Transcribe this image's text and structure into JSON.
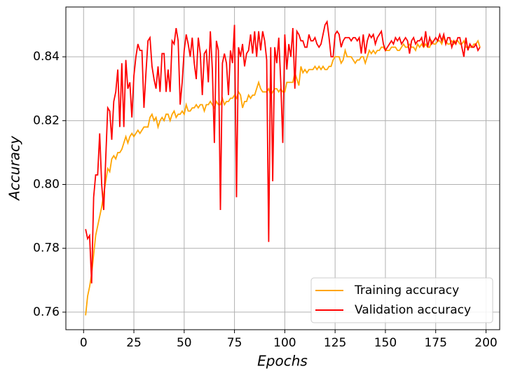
{
  "chart_data": {
    "type": "line",
    "xlabel": "Epochs",
    "ylabel": "Accuracy",
    "x": [
      1,
      2,
      3,
      4,
      5,
      6,
      7,
      8,
      9,
      10,
      11,
      12,
      13,
      14,
      15,
      16,
      17,
      18,
      19,
      20,
      21,
      22,
      23,
      24,
      25,
      26,
      27,
      28,
      29,
      30,
      31,
      32,
      33,
      34,
      35,
      36,
      37,
      38,
      39,
      40,
      41,
      42,
      43,
      44,
      45,
      46,
      47,
      48,
      49,
      50,
      51,
      52,
      53,
      54,
      55,
      56,
      57,
      58,
      59,
      60,
      61,
      62,
      63,
      64,
      65,
      66,
      67,
      68,
      69,
      70,
      71,
      72,
      73,
      74,
      75,
      76,
      77,
      78,
      79,
      80,
      81,
      82,
      83,
      84,
      85,
      86,
      87,
      88,
      89,
      90,
      91,
      92,
      93,
      94,
      95,
      96,
      97,
      98,
      99,
      100,
      101,
      102,
      103,
      104,
      105,
      106,
      107,
      108,
      109,
      110,
      111,
      112,
      113,
      114,
      115,
      116,
      117,
      118,
      119,
      120,
      121,
      122,
      123,
      124,
      125,
      126,
      127,
      128,
      129,
      130,
      131,
      132,
      133,
      134,
      135,
      136,
      137,
      138,
      139,
      140,
      141,
      142,
      143,
      144,
      145,
      146,
      147,
      148,
      149,
      150,
      151,
      152,
      153,
      154,
      155,
      156,
      157,
      158,
      159,
      160,
      161,
      162,
      163,
      164,
      165,
      166,
      167,
      168,
      169,
      170,
      171,
      172,
      173,
      174,
      175,
      176,
      177,
      178,
      179,
      180,
      181,
      182,
      183,
      184,
      185,
      186,
      187,
      188,
      189,
      190,
      191,
      192,
      193,
      194,
      195,
      196,
      197
    ],
    "series": [
      {
        "name": "Training accuracy",
        "color": "#ffa500",
        "values": [
          0.759,
          0.765,
          0.768,
          0.772,
          0.778,
          0.784,
          0.787,
          0.79,
          0.793,
          0.797,
          0.801,
          0.805,
          0.804,
          0.808,
          0.809,
          0.808,
          0.81,
          0.81,
          0.811,
          0.813,
          0.815,
          0.813,
          0.815,
          0.816,
          0.815,
          0.816,
          0.817,
          0.816,
          0.817,
          0.818,
          0.818,
          0.818,
          0.821,
          0.822,
          0.82,
          0.821,
          0.818,
          0.82,
          0.821,
          0.82,
          0.822,
          0.822,
          0.82,
          0.822,
          0.823,
          0.821,
          0.822,
          0.822,
          0.823,
          0.822,
          0.825,
          0.823,
          0.823,
          0.824,
          0.824,
          0.825,
          0.824,
          0.825,
          0.825,
          0.823,
          0.825,
          0.825,
          0.826,
          0.825,
          0.824,
          0.826,
          0.825,
          0.825,
          0.827,
          0.825,
          0.826,
          0.826,
          0.827,
          0.827,
          0.828,
          0.827,
          0.829,
          0.828,
          0.824,
          0.826,
          0.826,
          0.828,
          0.827,
          0.828,
          0.828,
          0.83,
          0.832,
          0.83,
          0.829,
          0.829,
          0.829,
          0.83,
          0.828,
          0.829,
          0.83,
          0.83,
          0.829,
          0.83,
          0.829,
          0.829,
          0.832,
          0.832,
          0.832,
          0.832,
          0.835,
          0.833,
          0.831,
          0.837,
          0.835,
          0.836,
          0.835,
          0.836,
          0.836,
          0.836,
          0.837,
          0.836,
          0.837,
          0.836,
          0.837,
          0.836,
          0.836,
          0.837,
          0.837,
          0.839,
          0.84,
          0.84,
          0.84,
          0.838,
          0.839,
          0.842,
          0.84,
          0.84,
          0.84,
          0.839,
          0.838,
          0.839,
          0.839,
          0.84,
          0.84,
          0.838,
          0.84,
          0.842,
          0.841,
          0.842,
          0.841,
          0.842,
          0.842,
          0.843,
          0.843,
          0.842,
          0.842,
          0.842,
          0.843,
          0.843,
          0.843,
          0.842,
          0.842,
          0.843,
          0.844,
          0.843,
          0.843,
          0.844,
          0.843,
          0.843,
          0.842,
          0.844,
          0.843,
          0.844,
          0.843,
          0.844,
          0.843,
          0.843,
          0.845,
          0.844,
          0.844,
          0.845,
          0.845,
          0.844,
          0.846,
          0.845,
          0.844,
          0.844,
          0.845,
          0.844,
          0.845,
          0.845,
          0.844,
          0.844,
          0.845,
          0.843,
          0.843,
          0.843,
          0.843,
          0.844,
          0.844,
          0.845,
          0.843
        ]
      },
      {
        "name": "Validation accuracy",
        "color": "#ff0000",
        "values": [
          0.786,
          0.783,
          0.784,
          0.769,
          0.796,
          0.803,
          0.803,
          0.816,
          0.8,
          0.792,
          0.808,
          0.824,
          0.823,
          0.814,
          0.826,
          0.829,
          0.836,
          0.818,
          0.838,
          0.818,
          0.839,
          0.83,
          0.832,
          0.821,
          0.834,
          0.84,
          0.844,
          0.842,
          0.842,
          0.824,
          0.835,
          0.845,
          0.846,
          0.837,
          0.833,
          0.83,
          0.837,
          0.829,
          0.841,
          0.841,
          0.829,
          0.836,
          0.829,
          0.845,
          0.844,
          0.849,
          0.845,
          0.825,
          0.832,
          0.842,
          0.847,
          0.844,
          0.84,
          0.846,
          0.838,
          0.833,
          0.846,
          0.841,
          0.828,
          0.841,
          0.842,
          0.832,
          0.848,
          0.836,
          0.813,
          0.845,
          0.842,
          0.792,
          0.838,
          0.841,
          0.838,
          0.828,
          0.842,
          0.838,
          0.85,
          0.796,
          0.843,
          0.84,
          0.844,
          0.837,
          0.841,
          0.842,
          0.847,
          0.841,
          0.848,
          0.84,
          0.848,
          0.842,
          0.848,
          0.845,
          0.839,
          0.782,
          0.843,
          0.801,
          0.843,
          0.838,
          0.846,
          0.832,
          0.813,
          0.847,
          0.836,
          0.844,
          0.84,
          0.849,
          0.83,
          0.848,
          0.847,
          0.845,
          0.845,
          0.843,
          0.843,
          0.847,
          0.845,
          0.845,
          0.846,
          0.844,
          0.843,
          0.844,
          0.847,
          0.85,
          0.851,
          0.846,
          0.84,
          0.84,
          0.847,
          0.848,
          0.847,
          0.843,
          0.845,
          0.846,
          0.846,
          0.846,
          0.845,
          0.846,
          0.846,
          0.845,
          0.846,
          0.841,
          0.847,
          0.841,
          0.845,
          0.847,
          0.846,
          0.847,
          0.844,
          0.846,
          0.847,
          0.848,
          0.844,
          0.842,
          0.843,
          0.844,
          0.845,
          0.844,
          0.846,
          0.845,
          0.846,
          0.844,
          0.845,
          0.846,
          0.845,
          0.841,
          0.845,
          0.846,
          0.844,
          0.845,
          0.845,
          0.846,
          0.843,
          0.848,
          0.843,
          0.846,
          0.844,
          0.845,
          0.846,
          0.845,
          0.847,
          0.845,
          0.847,
          0.844,
          0.846,
          0.846,
          0.843,
          0.845,
          0.844,
          0.846,
          0.846,
          0.843,
          0.84,
          0.846,
          0.842,
          0.844,
          0.843,
          0.843,
          0.844,
          0.842,
          0.843
        ]
      }
    ],
    "xlim": [
      -8.8,
      206.8
    ],
    "ylim": [
      0.7545,
      0.8556
    ],
    "xticks": [
      0,
      25,
      50,
      75,
      100,
      125,
      150,
      175,
      200
    ],
    "yticks": [
      0.76,
      0.78,
      {
        "value": 0.8,
        "label": "0.80"
      },
      0.82,
      0.84
    ],
    "grid": true,
    "legend": "lower right"
  }
}
